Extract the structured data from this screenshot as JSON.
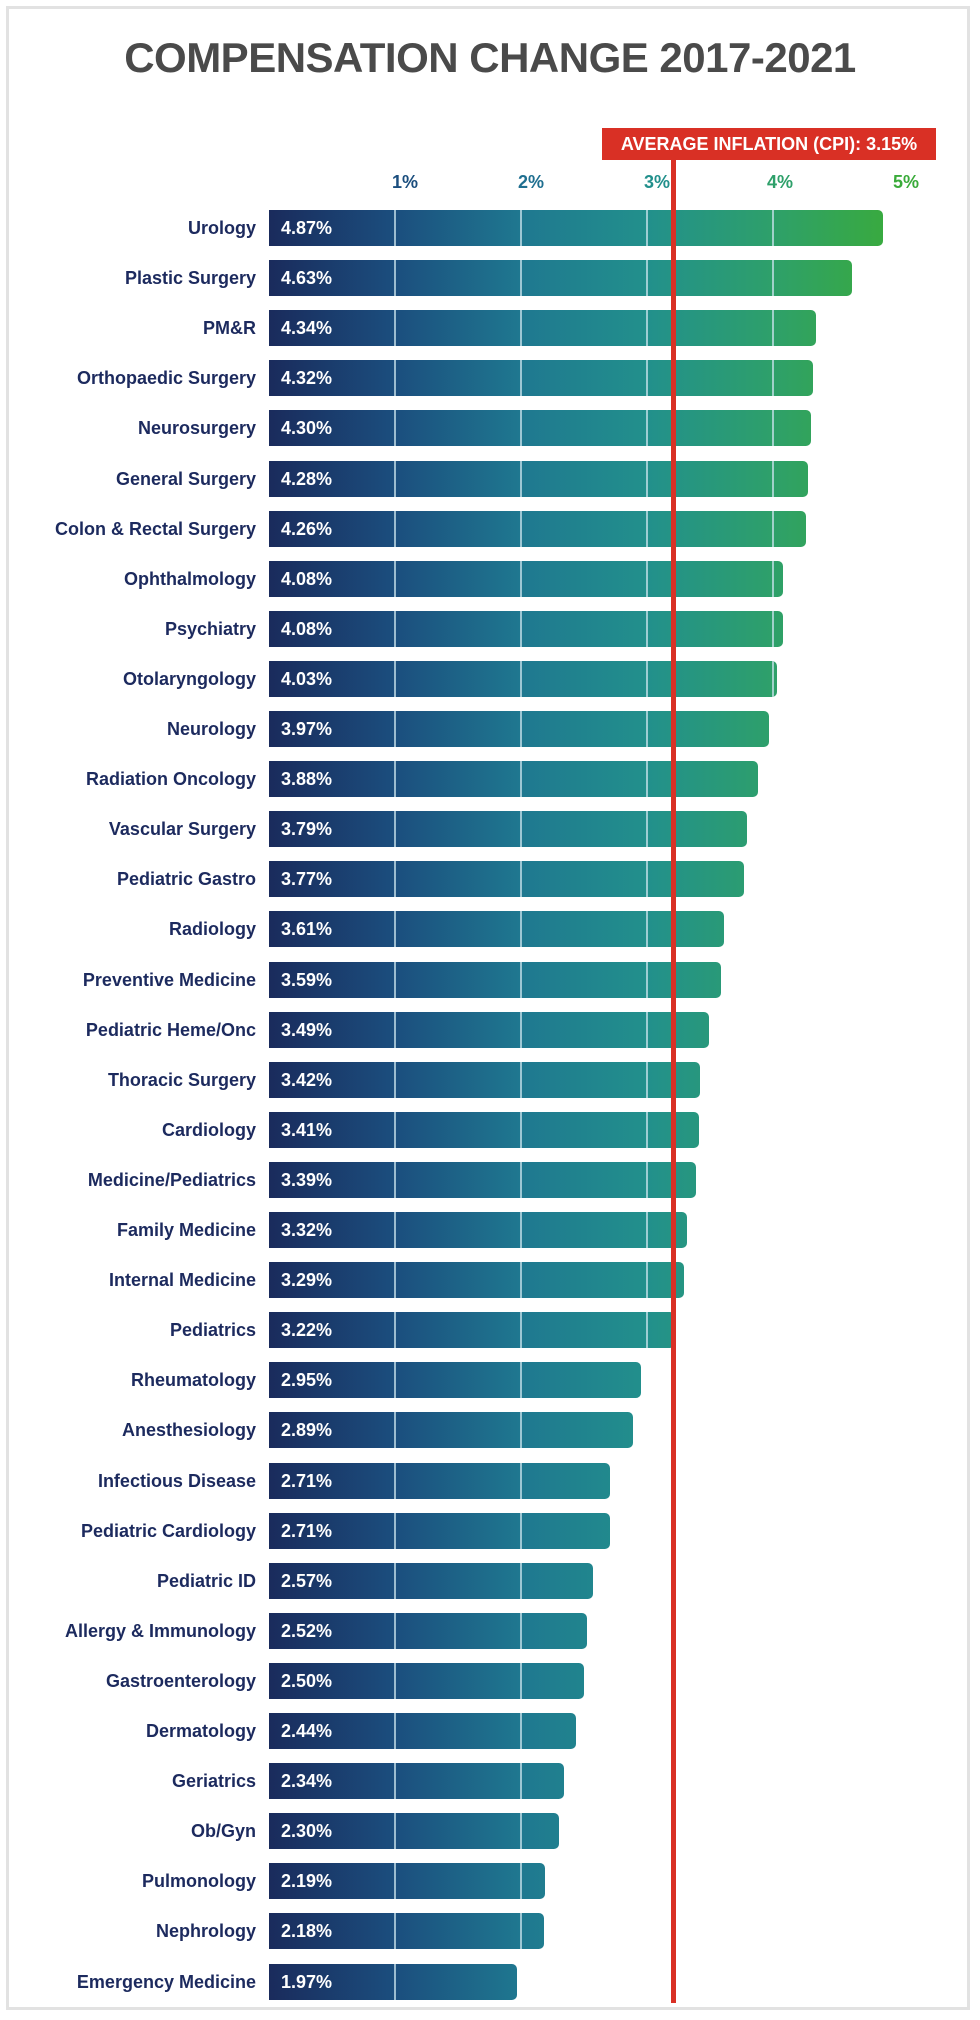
{
  "chart_data": {
    "type": "bar",
    "orientation": "horizontal",
    "title": "COMPENSATION CHANGE 2017-2021",
    "xlim": [
      0,
      5
    ],
    "x_ticks": [
      "1%",
      "2%",
      "3%",
      "4%",
      "5%"
    ],
    "grid": true,
    "categories": [
      "Urology",
      "Plastic Surgery",
      "PM&R",
      "Orthopaedic Surgery",
      "Neurosurgery",
      "General Surgery",
      "Colon & Rectal Surgery",
      "Ophthalmology",
      "Psychiatry",
      "Otolaryngology",
      "Neurology",
      "Radiation Oncology",
      "Vascular Surgery",
      "Pediatric Gastro",
      "Radiology",
      "Preventive Medicine",
      "Pediatric Heme/Onc",
      "Thoracic Surgery",
      "Cardiology",
      "Medicine/Pediatrics",
      "Family Medicine",
      "Internal Medicine",
      "Pediatrics",
      "Rheumatology",
      "Anesthesiology",
      "Infectious Disease",
      "Pediatric Cardiology",
      "Pediatric ID",
      "Allergy & Immunology",
      "Gastroenterology",
      "Dermatology",
      "Geriatrics",
      "Ob/Gyn",
      "Pulmonology",
      "Nephrology",
      "Emergency Medicine"
    ],
    "values": [
      4.87,
      4.63,
      4.34,
      4.32,
      4.3,
      4.28,
      4.26,
      4.08,
      4.08,
      4.03,
      3.97,
      3.88,
      3.79,
      3.77,
      3.61,
      3.59,
      3.49,
      3.42,
      3.41,
      3.39,
      3.32,
      3.29,
      3.22,
      2.95,
      2.89,
      2.71,
      2.71,
      2.57,
      2.52,
      2.5,
      2.44,
      2.34,
      2.3,
      2.19,
      2.18,
      1.97
    ],
    "value_labels": [
      "4.87%",
      "4.63%",
      "4.34%",
      "4.32%",
      "4.30%",
      "4.28%",
      "4.26%",
      "4.08%",
      "4.08%",
      "4.03%",
      "3.97%",
      "3.88%",
      "3.79%",
      "3.77%",
      "3.61%",
      "3.59%",
      "3.49%",
      "3.42%",
      "3.41%",
      "3.39%",
      "3.32%",
      "3.29%",
      "3.22%",
      "2.95%",
      "2.89%",
      "2.71%",
      "2.71%",
      "2.57%",
      "2.52%",
      "2.50%",
      "2.44%",
      "2.34%",
      "2.30%",
      "2.19%",
      "2.18%",
      "1.97%"
    ],
    "reference_line": {
      "value": 3.15,
      "label": "AVERAGE INFLATION (CPI): 3.15%",
      "color": "#d93025"
    },
    "colors": {
      "start": "#1a2b5c",
      "mid": "#22908c",
      "end": "#3aab3a",
      "label": "#1c2a5e",
      "title": "#4a4a4a"
    },
    "tick_colors": [
      "#1b4e7e",
      "#1f6f90",
      "#22908c",
      "#2ea06a",
      "#3aab3a"
    ]
  }
}
